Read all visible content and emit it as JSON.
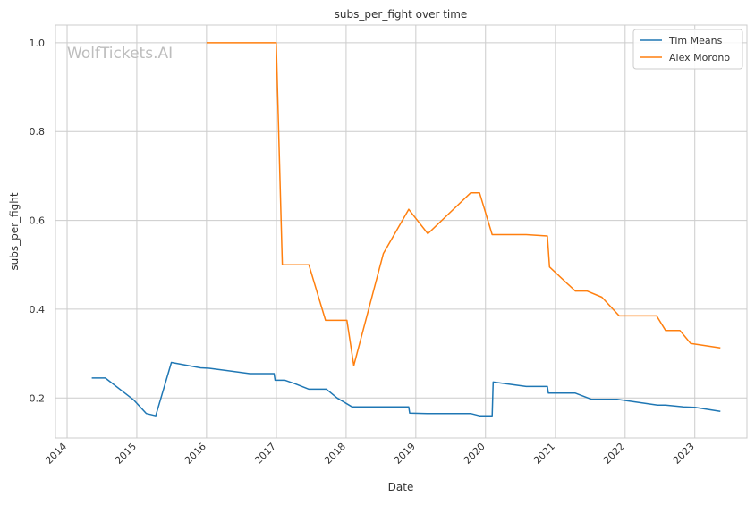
{
  "watermark": "WolfTickets.AI",
  "chart_data": {
    "type": "line",
    "title": "subs_per_fight over time",
    "xlabel": "Date",
    "ylabel": "subs_per_fight",
    "xlim": [
      "2013-11-01",
      "2023-10-01"
    ],
    "ylim": [
      0.11,
      1.04
    ],
    "grid": true,
    "legend_position": "top-right",
    "x_ticks": [
      "2014",
      "2015",
      "2016",
      "2017",
      "2018",
      "2019",
      "2020",
      "2021",
      "2022",
      "2023"
    ],
    "y_ticks": [
      0.2,
      0.4,
      0.6,
      0.8,
      1.0
    ],
    "y_tick_labels": [
      "0.2",
      "0.4",
      "0.6",
      "0.8",
      "1.0"
    ],
    "series": [
      {
        "name": "Tim Means",
        "color": "#1f77b4",
        "points": [
          [
            "2014-05-10",
            0.245
          ],
          [
            "2014-07-20",
            0.245
          ],
          [
            "2014-12-15",
            0.196
          ],
          [
            "2015-02-20",
            0.165
          ],
          [
            "2015-04-10",
            0.16
          ],
          [
            "2015-07-01",
            0.28
          ],
          [
            "2015-12-01",
            0.268
          ],
          [
            "2016-01-15",
            0.267
          ],
          [
            "2016-08-15",
            0.255
          ],
          [
            "2016-12-20",
            0.255
          ],
          [
            "2016-12-25",
            0.24
          ],
          [
            "2017-02-15",
            0.24
          ],
          [
            "2017-04-10",
            0.232
          ],
          [
            "2017-06-20",
            0.22
          ],
          [
            "2017-09-20",
            0.22
          ],
          [
            "2017-11-15",
            0.2
          ],
          [
            "2018-02-01",
            0.18
          ],
          [
            "2018-11-25",
            0.18
          ],
          [
            "2018-11-30",
            0.166
          ],
          [
            "2019-03-01",
            0.165
          ],
          [
            "2019-10-15",
            0.165
          ],
          [
            "2019-12-01",
            0.16
          ],
          [
            "2020-02-05",
            0.16
          ],
          [
            "2020-02-10",
            0.236
          ],
          [
            "2020-08-01",
            0.226
          ],
          [
            "2020-11-20",
            0.226
          ],
          [
            "2020-11-25",
            0.211
          ],
          [
            "2021-04-15",
            0.211
          ],
          [
            "2021-07-10",
            0.197
          ],
          [
            "2021-11-20",
            0.197
          ],
          [
            "2022-06-20",
            0.184
          ],
          [
            "2022-08-01",
            0.184
          ],
          [
            "2022-11-01",
            0.18
          ],
          [
            "2023-01-01",
            0.179
          ],
          [
            "2023-05-15",
            0.17
          ]
        ]
      },
      {
        "name": "Alex Morono",
        "color": "#ff7f0e",
        "points": [
          [
            "2016-01-01",
            1.0
          ],
          [
            "2016-12-31",
            1.0
          ],
          [
            "2017-02-01",
            0.5
          ],
          [
            "2017-06-20",
            0.5
          ],
          [
            "2017-09-15",
            0.375
          ],
          [
            "2018-01-05",
            0.375
          ],
          [
            "2018-02-10",
            0.273
          ],
          [
            "2018-07-15",
            0.525
          ],
          [
            "2018-11-25",
            0.625
          ],
          [
            "2019-03-05",
            0.57
          ],
          [
            "2019-10-15",
            0.662
          ],
          [
            "2019-12-01",
            0.662
          ],
          [
            "2020-02-05",
            0.568
          ],
          [
            "2020-08-01",
            0.568
          ],
          [
            "2020-11-20",
            0.565
          ],
          [
            "2020-12-01",
            0.495
          ],
          [
            "2021-04-15",
            0.441
          ],
          [
            "2021-06-15",
            0.441
          ],
          [
            "2021-09-01",
            0.427
          ],
          [
            "2021-12-01",
            0.385
          ],
          [
            "2022-06-15",
            0.385
          ],
          [
            "2022-08-01",
            0.352
          ],
          [
            "2022-10-15",
            0.352
          ],
          [
            "2022-12-10",
            0.323
          ],
          [
            "2023-05-15",
            0.313
          ]
        ]
      }
    ]
  }
}
